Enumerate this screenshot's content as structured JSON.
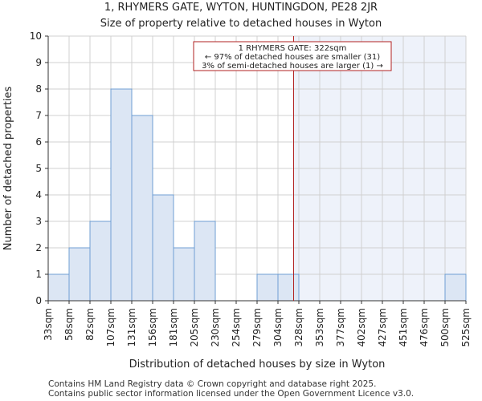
{
  "chart_data": {
    "type": "bar",
    "title": "1, RHYMERS GATE, WYTON, HUNTINGDON, PE28 2JR",
    "subtitle": "Size of property relative to detached houses in Wyton",
    "xlabel": "Distribution of detached houses by size in Wyton",
    "ylabel": "Number of detached properties",
    "ylim": [
      0,
      10
    ],
    "yticks": [
      0,
      1,
      2,
      3,
      4,
      5,
      6,
      7,
      8,
      9,
      10
    ],
    "bin_edges": [
      33,
      58,
      82,
      107,
      131,
      156,
      181,
      205,
      230,
      254,
      279,
      304,
      328,
      353,
      377,
      402,
      427,
      451,
      476,
      500,
      525
    ],
    "tick_labels": [
      "33sqm",
      "58sqm",
      "82sqm",
      "107sqm",
      "131sqm",
      "156sqm",
      "181sqm",
      "205sqm",
      "230sqm",
      "254sqm",
      "279sqm",
      "304sqm",
      "328sqm",
      "353sqm",
      "377sqm",
      "402sqm",
      "427sqm",
      "451sqm",
      "476sqm",
      "500sqm",
      "525sqm"
    ],
    "values": [
      1,
      2,
      3,
      8,
      7,
      4,
      2,
      3,
      0,
      0,
      1,
      1,
      0,
      0,
      0,
      0,
      0,
      0,
      0,
      1
    ],
    "property_size": 322,
    "annotation": {
      "lines": [
        "1 RHYMERS GATE: 322sqm",
        "← 97% of detached houses are smaller (31)",
        "3% of semi-detached houses are larger (1) →"
      ]
    },
    "colors": {
      "bar_fill": "#dce6f4",
      "bar_stroke": "#6f9fd3",
      "shade": "#eef2fa",
      "marker": "#b22222",
      "grid": "#d0d0d0"
    },
    "grid": true
  },
  "footer": {
    "line1": "Contains HM Land Registry data © Crown copyright and database right 2025.",
    "line2": "Contains public sector information licensed under the Open Government Licence v3.0."
  }
}
